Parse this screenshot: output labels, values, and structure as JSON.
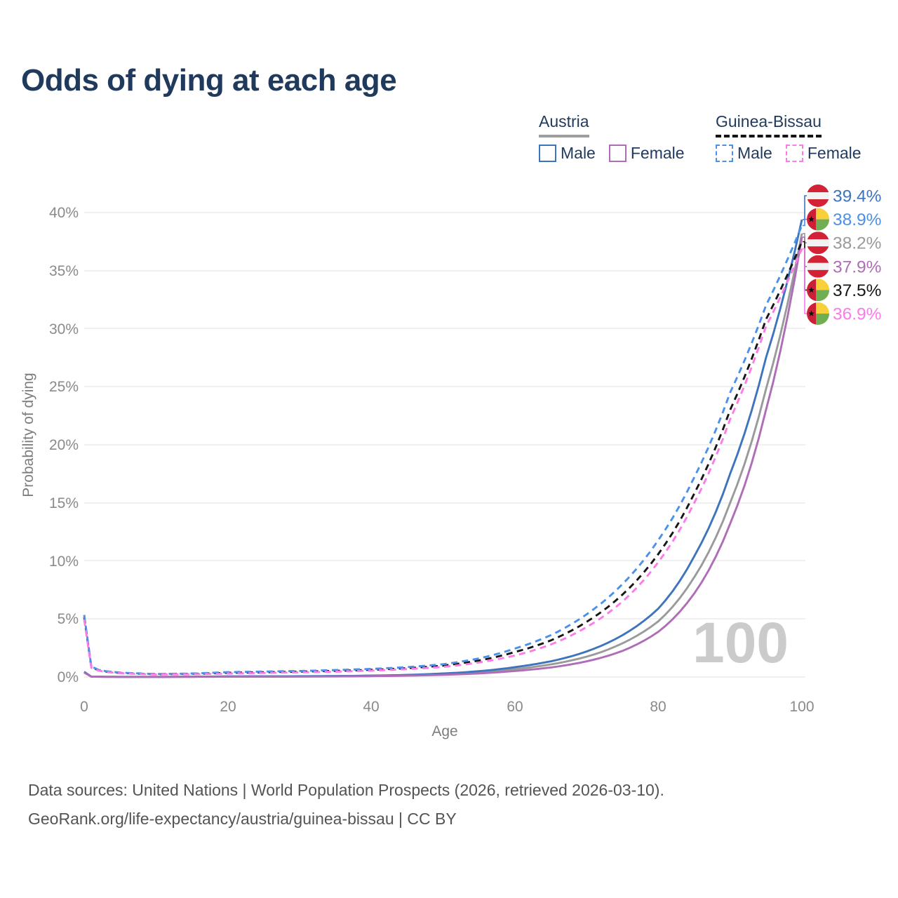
{
  "title": "Odds of dying at each age",
  "legend": {
    "groups": [
      {
        "name": "Austria",
        "line_style": "solid",
        "items": [
          {
            "label": "Male",
            "series": "at_male"
          },
          {
            "label": "Female",
            "series": "at_female"
          }
        ]
      },
      {
        "name": "Guinea-Bissau",
        "line_style": "dashed",
        "items": [
          {
            "label": "Male",
            "series": "gb_male"
          },
          {
            "label": "Female",
            "series": "gb_female"
          }
        ]
      }
    ]
  },
  "footer": {
    "line1": "Data sources: United Nations | World Population Prospects (2026, retrieved 2026-03-10).",
    "line2": "GeoRank.org/life-expectancy/austria/guinea-bissau | CC BY"
  },
  "chart_data": {
    "type": "line",
    "title": "Odds of dying at each age",
    "xlabel": "Age",
    "ylabel": "Probability of dying",
    "xlim": [
      0,
      100
    ],
    "ylim_percent": [
      0,
      40
    ],
    "grid": "horizontal",
    "watermark": "100",
    "xticks": [
      "0",
      "20",
      "40",
      "60",
      "80",
      "100"
    ],
    "yticks": [
      "40%",
      "35%",
      "30%",
      "25%",
      "20%",
      "15%",
      "10%",
      "5%",
      "0%"
    ],
    "flag_colors": {
      "at_red": "#d32235",
      "at_white": "#f2f2f2",
      "gw_red": "#cf1f36",
      "gw_yellow": "#f8d03c",
      "gw_green": "#6fae53",
      "gw_star": "#111111"
    },
    "ages": [
      0,
      1,
      2,
      3,
      5,
      10,
      15,
      20,
      25,
      30,
      35,
      40,
      45,
      50,
      55,
      60,
      65,
      70,
      75,
      80,
      85,
      90,
      95,
      100
    ],
    "series": [
      {
        "id": "at_comb",
        "name": "Austria — Both sexes",
        "country": "Austria",
        "flag": "AT",
        "color": "#9a9a9a",
        "dashed": false,
        "end_label": "38.2%",
        "values": [
          0.42,
          0.03,
          0.022,
          0.018,
          0.013,
          0.011,
          0.02,
          0.04,
          0.045,
          0.055,
          0.07,
          0.1,
          0.15,
          0.25,
          0.4,
          0.68,
          1.08,
          1.75,
          2.9,
          4.8,
          8.6,
          15.0,
          24.8,
          38.2
        ]
      },
      {
        "id": "at_male",
        "name": "Austria — Male",
        "country": "Austria",
        "flag": "AT",
        "color": "#3e74bd",
        "dashed": false,
        "end_label": "39.4%",
        "values": [
          0.45,
          0.035,
          0.025,
          0.02,
          0.015,
          0.012,
          0.025,
          0.055,
          0.06,
          0.07,
          0.085,
          0.12,
          0.18,
          0.3,
          0.5,
          0.85,
          1.35,
          2.2,
          3.6,
          5.9,
          10.4,
          17.5,
          27.5,
          39.4
        ]
      },
      {
        "id": "at_female",
        "name": "Austria — Female",
        "country": "Austria",
        "flag": "AT",
        "color": "#ae6db6",
        "dashed": false,
        "end_label": "37.9%",
        "values": [
          0.38,
          0.028,
          0.02,
          0.015,
          0.011,
          0.01,
          0.015,
          0.025,
          0.028,
          0.035,
          0.05,
          0.075,
          0.115,
          0.19,
          0.31,
          0.52,
          0.82,
          1.35,
          2.25,
          3.9,
          7.2,
          13.2,
          23.0,
          37.9
        ]
      },
      {
        "id": "gb_comb",
        "name": "Guinea-Bissau — Both sexes",
        "country": "Guinea-Bissau",
        "flag": "GW",
        "color": "#161616",
        "dashed": true,
        "end_label": "37.5%",
        "values": [
          5.15,
          0.85,
          0.58,
          0.47,
          0.35,
          0.24,
          0.27,
          0.36,
          0.41,
          0.46,
          0.53,
          0.62,
          0.76,
          0.98,
          1.42,
          2.15,
          3.15,
          4.75,
          7.1,
          10.6,
          15.8,
          23.0,
          30.8,
          37.5
        ]
      },
      {
        "id": "gb_male",
        "name": "Guinea-Bissau — Male",
        "country": "Guinea-Bissau",
        "flag": "GW",
        "color": "#4b90ea",
        "dashed": true,
        "end_label": "38.9%",
        "values": [
          5.35,
          0.9,
          0.62,
          0.5,
          0.38,
          0.26,
          0.3,
          0.42,
          0.47,
          0.52,
          0.6,
          0.7,
          0.85,
          1.1,
          1.6,
          2.45,
          3.6,
          5.4,
          8.0,
          11.8,
          17.2,
          24.5,
          32.0,
          38.9
        ]
      },
      {
        "id": "gb_female",
        "name": "Guinea-Bissau — Female",
        "country": "Guinea-Bissau",
        "flag": "GW",
        "color": "#fb7be8",
        "dashed": true,
        "end_label": "36.9%",
        "values": [
          4.95,
          0.8,
          0.55,
          0.44,
          0.33,
          0.22,
          0.24,
          0.3,
          0.35,
          0.4,
          0.46,
          0.55,
          0.68,
          0.87,
          1.25,
          1.85,
          2.8,
          4.3,
          6.5,
          9.9,
          15.0,
          22.2,
          30.2,
          36.9
        ]
      }
    ]
  }
}
